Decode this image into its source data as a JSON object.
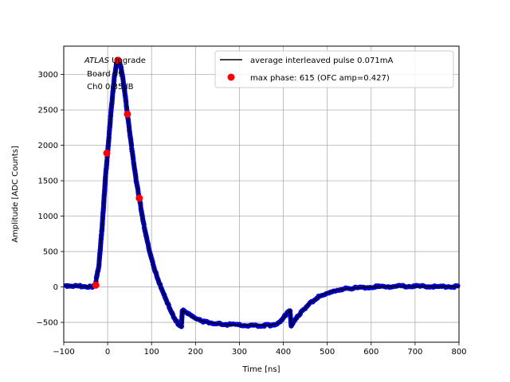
{
  "chart_data": {
    "type": "scatter",
    "xlabel": "Time [ns]",
    "ylabel": "Amplitude [ADC Counts]",
    "xlim": [
      -100,
      800
    ],
    "ylim": [
      -780,
      3400
    ],
    "xticks": [
      -100,
      0,
      100,
      200,
      300,
      400,
      500,
      600,
      700,
      800
    ],
    "yticks": [
      -500,
      0,
      500,
      1000,
      1500,
      2000,
      2500,
      3000
    ],
    "grid": true,
    "legend_position": "top-right",
    "annotation": {
      "line1_italic": "ATLAS",
      "line1_rest": " Upgrade",
      "line2": " Board 59",
      "line3": " Ch0 0.35dB"
    },
    "series": [
      {
        "name": "average interleaved pulse 0.071mA",
        "kind": "line",
        "color": "#000000",
        "points": [
          [
            -95,
            20
          ],
          [
            -60,
            10
          ],
          [
            -35,
            5
          ],
          [
            -28,
            40
          ],
          [
            -20,
            300
          ],
          [
            -12,
            900
          ],
          [
            -5,
            1550
          ],
          [
            0,
            1900
          ],
          [
            8,
            2500
          ],
          [
            15,
            2950
          ],
          [
            20,
            3150
          ],
          [
            25,
            3210
          ],
          [
            30,
            3120
          ],
          [
            38,
            2800
          ],
          [
            45,
            2440
          ],
          [
            55,
            1950
          ],
          [
            65,
            1500
          ],
          [
            72,
            1260
          ],
          [
            80,
            950
          ],
          [
            90,
            650
          ],
          [
            100,
            390
          ],
          [
            110,
            190
          ],
          [
            120,
            20
          ],
          [
            130,
            -130
          ],
          [
            140,
            -280
          ],
          [
            150,
            -420
          ],
          [
            160,
            -520
          ],
          [
            168,
            -560
          ],
          [
            170,
            -330
          ],
          [
            185,
            -390
          ],
          [
            200,
            -450
          ],
          [
            220,
            -490
          ],
          [
            250,
            -520
          ],
          [
            300,
            -540
          ],
          [
            340,
            -545
          ],
          [
            370,
            -540
          ],
          [
            385,
            -520
          ],
          [
            395,
            -470
          ],
          [
            405,
            -400
          ],
          [
            415,
            -330
          ],
          [
            418,
            -560
          ],
          [
            425,
            -480
          ],
          [
            440,
            -360
          ],
          [
            460,
            -230
          ],
          [
            480,
            -140
          ],
          [
            500,
            -80
          ],
          [
            520,
            -45
          ],
          [
            550,
            -20
          ],
          [
            600,
            0
          ],
          [
            650,
            8
          ],
          [
            700,
            10
          ],
          [
            750,
            5
          ],
          [
            800,
            5
          ]
        ]
      },
      {
        "name": "max phase: 615 (OFC amp=0.427)",
        "kind": "markers",
        "color": "#ff0000",
        "points": [
          [
            -27,
            25
          ],
          [
            -2,
            1890
          ],
          [
            23,
            3200
          ],
          [
            45,
            2440
          ],
          [
            72,
            1255
          ]
        ]
      }
    ],
    "scatter_color": "#0000cc"
  }
}
